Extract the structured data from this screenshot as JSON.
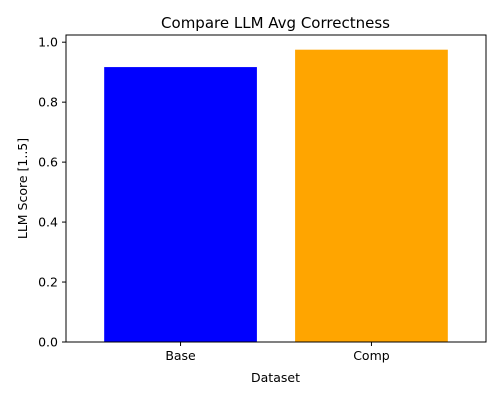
{
  "chart_data": {
    "type": "bar",
    "title": "Compare LLM Avg Correctness",
    "xlabel": "Dataset",
    "ylabel": "LLM Score [1..5]",
    "categories": [
      "Base",
      "Comp"
    ],
    "values": [
      0.917,
      0.975
    ],
    "colors": [
      "#0000ff",
      "#ffa500"
    ],
    "ylim": [
      0,
      1.024
    ],
    "yticks": [
      0.0,
      0.2,
      0.4,
      0.6,
      0.8,
      1.0
    ],
    "ytick_labels": [
      "0.0",
      "0.2",
      "0.4",
      "0.6",
      "0.8",
      "1.0"
    ],
    "grid": false,
    "legend": "none"
  }
}
